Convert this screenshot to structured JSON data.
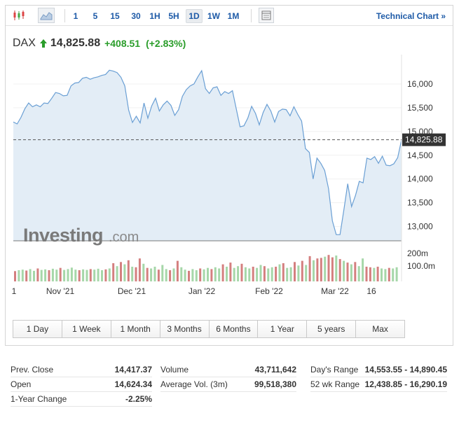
{
  "toolbar": {
    "timeframes": [
      "1",
      "5",
      "15",
      "30",
      "1H",
      "5H",
      "1D",
      "1W",
      "1M"
    ],
    "active_timeframe": "1D",
    "tech_link": "Technical Chart »"
  },
  "quote": {
    "symbol": "DAX",
    "price": "14,825.88",
    "change": "+408.51",
    "change_pct": "(+2.83%)",
    "up_color": "#2a9d2a"
  },
  "chart": {
    "watermark_bold": "Investing",
    "watermark_light": ".com",
    "current_label": "14,825.88",
    "price_ticks": [
      "16,000",
      "15,500",
      "15,000",
      "14,500",
      "14,000",
      "13,500",
      "13,000"
    ],
    "volume_ticks": [
      "200m",
      "100.0m"
    ],
    "date_labels": [
      "1",
      "Nov '21",
      "Dec '21",
      "Jan '22",
      "Feb '22",
      "Mar '22",
      "16"
    ],
    "line_color": "#6a9fd4",
    "fill_color": "#e3edf6",
    "vol_up_color": "#a6d7a9",
    "vol_down_color": "#d47f7f"
  },
  "chart_data": {
    "type": "area",
    "ylim": [
      12700,
      16500
    ],
    "current_value": 14825.88,
    "price_ticks": [
      16000,
      15500,
      15000,
      14500,
      14000,
      13500,
      13000
    ],
    "values": [
      15200,
      15160,
      15300,
      15480,
      15600,
      15520,
      15560,
      15520,
      15600,
      15590,
      15700,
      15820,
      15800,
      15750,
      15760,
      15960,
      16020,
      16030,
      16120,
      16140,
      16100,
      16130,
      16150,
      16180,
      16200,
      16290,
      16270,
      16240,
      16140,
      15960,
      15450,
      15190,
      15320,
      15180,
      15600,
      15280,
      15540,
      15700,
      15430,
      15560,
      15640,
      15550,
      15340,
      15460,
      15740,
      15880,
      15960,
      16000,
      16150,
      16280,
      15900,
      15800,
      15920,
      15940,
      15760,
      15840,
      15800,
      15860,
      15480,
      15100,
      15120,
      15280,
      15530,
      15380,
      15140,
      15400,
      15570,
      15430,
      15200,
      15420,
      15470,
      15460,
      15330,
      15520,
      15360,
      15220,
      14640,
      14560,
      14000,
      14440,
      14330,
      14180,
      13800,
      13120,
      12830,
      12830,
      13350,
      13900,
      13420,
      13650,
      13950,
      13920,
      14440,
      14410,
      14470,
      14330,
      14480,
      14290,
      14280,
      14320,
      14450,
      14825
    ],
    "volume": [
      {
        "v": 35,
        "up": false
      },
      {
        "v": 38,
        "up": true
      },
      {
        "v": 40,
        "up": true
      },
      {
        "v": 37,
        "up": false
      },
      {
        "v": 42,
        "up": true
      },
      {
        "v": 36,
        "up": true
      },
      {
        "v": 44,
        "up": false
      },
      {
        "v": 39,
        "up": true
      },
      {
        "v": 41,
        "up": true
      },
      {
        "v": 38,
        "up": false
      },
      {
        "v": 43,
        "up": true
      },
      {
        "v": 40,
        "up": true
      },
      {
        "v": 46,
        "up": false
      },
      {
        "v": 39,
        "up": true
      },
      {
        "v": 42,
        "up": true
      },
      {
        "v": 47,
        "up": true
      },
      {
        "v": 40,
        "up": true
      },
      {
        "v": 38,
        "up": false
      },
      {
        "v": 41,
        "up": true
      },
      {
        "v": 39,
        "up": true
      },
      {
        "v": 42,
        "up": false
      },
      {
        "v": 40,
        "up": true
      },
      {
        "v": 43,
        "up": true
      },
      {
        "v": 38,
        "up": true
      },
      {
        "v": 41,
        "up": false
      },
      {
        "v": 44,
        "up": true
      },
      {
        "v": 62,
        "up": false
      },
      {
        "v": 52,
        "up": true
      },
      {
        "v": 66,
        "up": false
      },
      {
        "v": 58,
        "up": true
      },
      {
        "v": 72,
        "up": false
      },
      {
        "v": 50,
        "up": true
      },
      {
        "v": 48,
        "up": false
      },
      {
        "v": 78,
        "up": false
      },
      {
        "v": 60,
        "up": true
      },
      {
        "v": 46,
        "up": false
      },
      {
        "v": 44,
        "up": true
      },
      {
        "v": 50,
        "up": true
      },
      {
        "v": 40,
        "up": false
      },
      {
        "v": 56,
        "up": true
      },
      {
        "v": 42,
        "up": true
      },
      {
        "v": 38,
        "up": false
      },
      {
        "v": 44,
        "up": true
      },
      {
        "v": 70,
        "up": false
      },
      {
        "v": 48,
        "up": true
      },
      {
        "v": 40,
        "up": true
      },
      {
        "v": 36,
        "up": false
      },
      {
        "v": 42,
        "up": true
      },
      {
        "v": 38,
        "up": true
      },
      {
        "v": 44,
        "up": false
      },
      {
        "v": 41,
        "up": true
      },
      {
        "v": 46,
        "up": true
      },
      {
        "v": 42,
        "up": false
      },
      {
        "v": 48,
        "up": true
      },
      {
        "v": 44,
        "up": true
      },
      {
        "v": 58,
        "up": false
      },
      {
        "v": 50,
        "up": true
      },
      {
        "v": 64,
        "up": false
      },
      {
        "v": 46,
        "up": true
      },
      {
        "v": 52,
        "up": true
      },
      {
        "v": 60,
        "up": false
      },
      {
        "v": 48,
        "up": true
      },
      {
        "v": 44,
        "up": true
      },
      {
        "v": 50,
        "up": false
      },
      {
        "v": 46,
        "up": true
      },
      {
        "v": 56,
        "up": true
      },
      {
        "v": 52,
        "up": false
      },
      {
        "v": 44,
        "up": true
      },
      {
        "v": 48,
        "up": true
      },
      {
        "v": 50,
        "up": false
      },
      {
        "v": 58,
        "up": true
      },
      {
        "v": 62,
        "up": false
      },
      {
        "v": 46,
        "up": true
      },
      {
        "v": 48,
        "up": true
      },
      {
        "v": 66,
        "up": false
      },
      {
        "v": 54,
        "up": true
      },
      {
        "v": 70,
        "up": false
      },
      {
        "v": 56,
        "up": true
      },
      {
        "v": 86,
        "up": false
      },
      {
        "v": 72,
        "up": true
      },
      {
        "v": 78,
        "up": false
      },
      {
        "v": 80,
        "up": false
      },
      {
        "v": 84,
        "up": true
      },
      {
        "v": 90,
        "up": false
      },
      {
        "v": 82,
        "up": false
      },
      {
        "v": 88,
        "up": true
      },
      {
        "v": 76,
        "up": false
      },
      {
        "v": 70,
        "up": true
      },
      {
        "v": 64,
        "up": false
      },
      {
        "v": 58,
        "up": true
      },
      {
        "v": 66,
        "up": false
      },
      {
        "v": 52,
        "up": true
      },
      {
        "v": 78,
        "up": true
      },
      {
        "v": 50,
        "up": false
      },
      {
        "v": 48,
        "up": false
      },
      {
        "v": 46,
        "up": true
      },
      {
        "v": 50,
        "up": false
      },
      {
        "v": 44,
        "up": true
      },
      {
        "v": 42,
        "up": true
      },
      {
        "v": 46,
        "up": false
      },
      {
        "v": 44,
        "up": true
      },
      {
        "v": 48,
        "up": true
      }
    ]
  },
  "ranges": [
    "1 Day",
    "1 Week",
    "1 Month",
    "3 Months",
    "6 Months",
    "1 Year",
    "5 years",
    "Max"
  ],
  "stats": {
    "col1": [
      {
        "label": "Prev. Close",
        "value": "14,417.37"
      },
      {
        "label": "Open",
        "value": "14,624.34"
      },
      {
        "label": "1-Year Change",
        "value": "-2.25%"
      }
    ],
    "col2": [
      {
        "label": "Volume",
        "value": "43,711,642"
      },
      {
        "label": "Average Vol. (3m)",
        "value": "99,518,380"
      }
    ],
    "col3": [
      {
        "label": "Day's Range",
        "value": "14,553.55 - 14,890.45"
      },
      {
        "label": "52 wk Range",
        "value": "12,438.85 - 16,290.19"
      }
    ]
  }
}
